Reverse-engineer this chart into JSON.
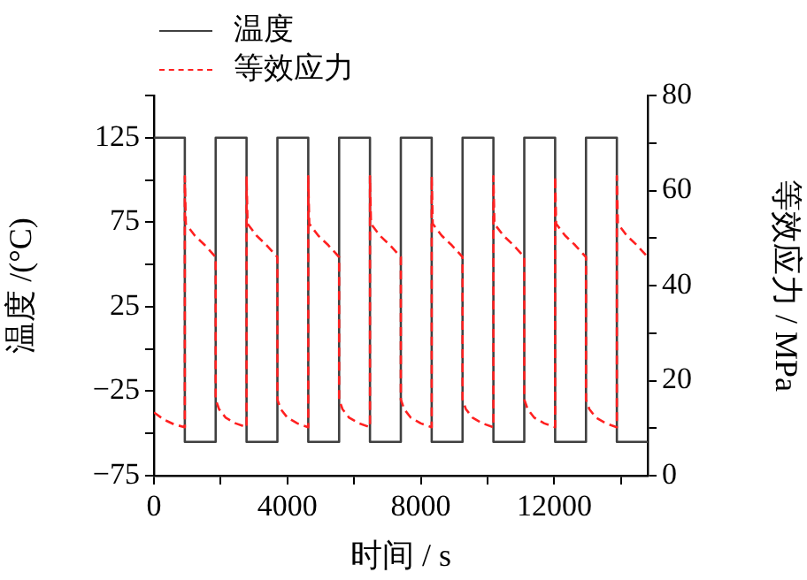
{
  "chart_data": {
    "type": "line",
    "xlabel": "时间 / s",
    "ylabel": "温度 /(°C)",
    "y2label": "等效应力 / MPa",
    "xlim": [
      0,
      14800
    ],
    "xticks": [
      0,
      {
        "value": 2000,
        "label": null
      },
      4000,
      {
        "value": 6000,
        "label": null
      },
      8000,
      {
        "value": 10000,
        "label": null
      },
      12000,
      {
        "value": 14000,
        "label": null
      }
    ],
    "ylim": [
      -75,
      150
    ],
    "yticks": [
      -75,
      {
        "value": -50,
        "label": null
      },
      -25,
      {
        "value": 0,
        "label": null
      },
      25,
      {
        "value": 50,
        "label": null
      },
      75,
      {
        "value": 100,
        "label": null
      },
      125,
      {
        "value": 150,
        "label": null
      }
    ],
    "y2lim": [
      0,
      80
    ],
    "y2ticks": [
      0,
      {
        "value": 10,
        "label": null
      },
      20,
      {
        "value": 30,
        "label": null
      },
      40,
      {
        "value": 50,
        "label": null
      },
      60,
      {
        "value": 70,
        "label": null
      },
      80
    ],
    "grid": false,
    "legend": "top left",
    "marker": "none",
    "series": [
      {
        "name": "温度",
        "color": "#404040",
        "line_style": "solid",
        "x": [
          0,
          925,
          925,
          1850,
          1850,
          2775,
          2775,
          3700,
          3700,
          4625,
          4625,
          5550,
          5550,
          6475,
          6475,
          7400,
          7400,
          8325,
          8325,
          9250,
          9250,
          10175,
          10175,
          11100,
          11100,
          12025,
          12025,
          12950,
          12950,
          13875,
          13875,
          14800
        ],
        "values": [
          125,
          125,
          -55,
          -55,
          125,
          125,
          -55,
          -55,
          125,
          125,
          -55,
          -55,
          125,
          125,
          -55,
          -55,
          125,
          125,
          -55,
          -55,
          125,
          125,
          -55,
          -55,
          125,
          125,
          -55,
          -55,
          125,
          125,
          -55,
          -55
        ]
      },
      {
        "name": "等效应力",
        "color": "#ff2020",
        "line_style": "dashed",
        "axis": "y2",
        "x": [
          0,
          300,
          600,
          925,
          925,
          955,
          1225,
          1525,
          1850,
          1850,
          1950,
          2150,
          2450,
          2775,
          2775,
          2805,
          3075,
          3375,
          3700,
          3700,
          3800,
          4000,
          4300,
          4625,
          4625,
          4655,
          4925,
          5225,
          5550,
          5550,
          5650,
          5850,
          6150,
          6475,
          6475,
          6505,
          6775,
          7075,
          7400,
          7400,
          7500,
          7700,
          8000,
          8325,
          8325,
          8355,
          8625,
          8925,
          9250,
          9250,
          9350,
          9550,
          9850,
          10175,
          10175,
          10205,
          10475,
          10775,
          11100,
          11100,
          11200,
          11400,
          11700,
          12025,
          12025,
          12055,
          12325,
          12625,
          12950,
          12950,
          13050,
          13250,
          13550,
          13875,
          13875,
          13905,
          14175,
          14475,
          14800
        ],
        "values": [
          13.3,
          11.8,
          10.8,
          10.2,
          63,
          53,
          50.5,
          48.5,
          46,
          16,
          14,
          12.2,
          11,
          10.2,
          63,
          53,
          50.5,
          48.5,
          46,
          16,
          14,
          12.2,
          11,
          10.2,
          63,
          53,
          50.5,
          48.5,
          46,
          16,
          14,
          12.2,
          11,
          10.2,
          63,
          53,
          50.5,
          48.5,
          46,
          16,
          14,
          12.2,
          11,
          10.2,
          63,
          53,
          50.5,
          48.5,
          46,
          16,
          14,
          12.2,
          11,
          10.2,
          63,
          53,
          50.5,
          48.5,
          46,
          16,
          14,
          12.2,
          11,
          10.2,
          63,
          53,
          50.5,
          48.5,
          46,
          16,
          14,
          12.2,
          11,
          10.2,
          63,
          53,
          50.5,
          48.5,
          46
        ]
      }
    ]
  }
}
